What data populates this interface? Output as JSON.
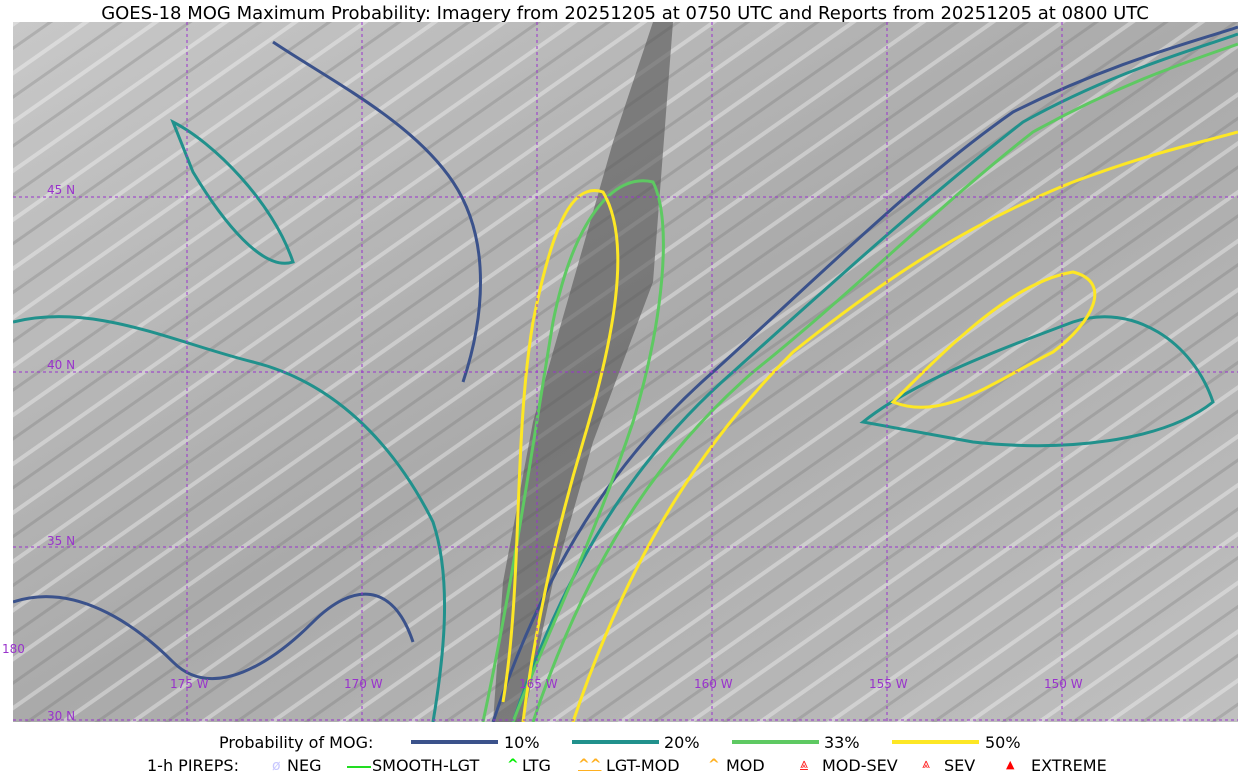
{
  "title": "GOES-18 MOG Maximum Probability: Imagery from 20251205 at 0750 UTC and Reports from 20251205 at 0800 UTC",
  "grid": {
    "lon_labels": [
      "180",
      "175 W",
      "170 W",
      "165 W",
      "160 W",
      "155 W",
      "150 W"
    ],
    "lat_labels": [
      "45 N",
      "40 N",
      "35 N",
      "30 N"
    ],
    "grid_color": "#9933cc"
  },
  "legend": {
    "probability": {
      "label": "Probability of MOG:",
      "levels": [
        {
          "label": "10%",
          "color": "#3b528b"
        },
        {
          "label": "20%",
          "color": "#21918c"
        },
        {
          "label": "33%",
          "color": "#5ec962"
        },
        {
          "label": "50%",
          "color": "#fde725"
        }
      ]
    },
    "pireps": {
      "label": "1-h PIREPS:",
      "items": [
        {
          "label": "NEG",
          "icon": "neg-circle-icon",
          "color": "#c8c8ff"
        },
        {
          "label": "SMOOTH-LGT",
          "icon": "line-icon",
          "color": "#22dd22"
        },
        {
          "label": "LTG",
          "icon": "caret-icon",
          "color": "#00ee00"
        },
        {
          "label": "LGT-MOD",
          "icon": "caret-bar-icon",
          "color": "#ffb020"
        },
        {
          "label": "MOD",
          "icon": "caret-icon",
          "color": "#ffb020"
        },
        {
          "label": "MOD-SEV",
          "icon": "double-caret-bar-icon",
          "color": "#ff2020"
        },
        {
          "label": "SEV",
          "icon": "double-caret-icon",
          "color": "#ff2020"
        },
        {
          "label": "EXTREME",
          "icon": "filled-triangle-icon",
          "color": "#ff0000"
        }
      ]
    }
  }
}
